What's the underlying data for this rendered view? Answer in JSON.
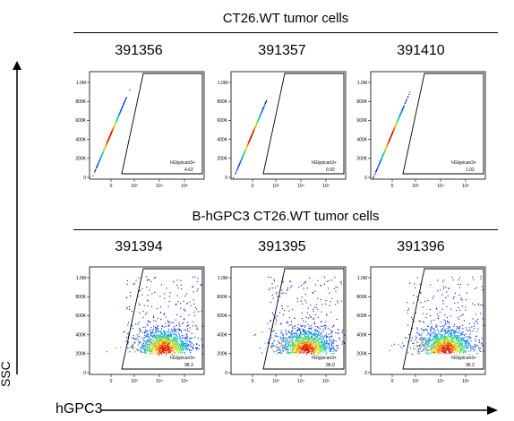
{
  "groups": [
    {
      "title": "CT26.WT tumor cells"
    },
    {
      "title": "B-hGPC3 CT26.WT tumor cells"
    }
  ],
  "axes": {
    "x_label": "hGPC3",
    "y_label": "SSC",
    "y_ticks": [
      "0",
      "200K",
      "400K",
      "600K",
      "800K",
      "1.0M"
    ],
    "x_ticks": [
      "0",
      "10³",
      "10⁴",
      "10⁵"
    ]
  },
  "chart_data": [
    {
      "type": "scatter",
      "group": "CT26.WT tumor cells",
      "title": "391356",
      "gate_label": "hGlypican3+",
      "gate_percent": "4.62"
    },
    {
      "type": "scatter",
      "group": "CT26.WT tumor cells",
      "title": "391357",
      "gate_label": "hGlypican3+",
      "gate_percent": "0.92"
    },
    {
      "type": "scatter",
      "group": "CT26.WT tumor cells",
      "title": "391410",
      "gate_label": "hGlypican3+",
      "gate_percent": "1.02"
    },
    {
      "type": "scatter",
      "group": "B-hGPC3 CT26.WT tumor cells",
      "title": "391394",
      "gate_label": "hGlypican3+",
      "gate_percent": "98.3"
    },
    {
      "type": "scatter",
      "group": "B-hGPC3 CT26.WT tumor cells",
      "title": "391395",
      "gate_label": "hGlypican3+",
      "gate_percent": "96.0"
    },
    {
      "type": "scatter",
      "group": "B-hGPC3 CT26.WT tumor cells",
      "title": "391396",
      "gate_label": "hGlypican3+",
      "gate_percent": "96.2"
    }
  ]
}
